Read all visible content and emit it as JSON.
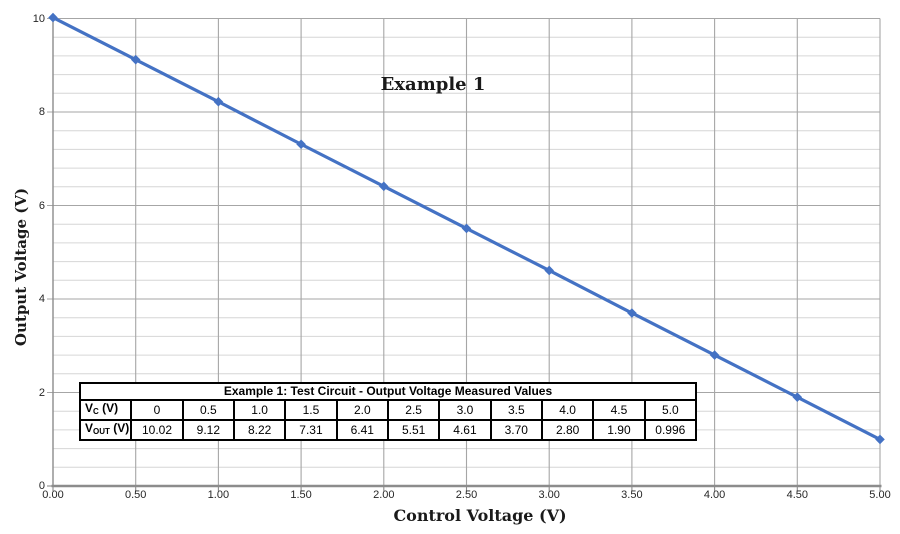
{
  "chart_data": {
    "type": "line",
    "title": "Example 1",
    "xlabel": "Control Voltage (V)",
    "ylabel": "Output Voltage (V)",
    "xlim": [
      0,
      5
    ],
    "ylim": [
      0,
      10
    ],
    "x_major_tick": 0.5,
    "y_major_tick": 2,
    "y_minor_tick": 0.4,
    "grid": "major-x, major-y, minor-y",
    "legend": "none",
    "x": [
      0,
      0.5,
      1.0,
      1.5,
      2.0,
      2.5,
      3.0,
      3.5,
      4.0,
      4.5,
      5.0
    ],
    "series": [
      {
        "name": "Output Voltage Measured Values",
        "values": [
          10.02,
          9.12,
          8.22,
          7.31,
          6.41,
          5.51,
          4.61,
          3.7,
          2.8,
          1.9,
          0.996
        ],
        "color": "#4472C4",
        "marker": "diamond"
      }
    ],
    "x_tick_labels": [
      "0.00",
      "0.50",
      "1.00",
      "1.50",
      "2.00",
      "2.50",
      "3.00",
      "3.50",
      "4.00",
      "4.50",
      "5.00"
    ],
    "y_tick_labels": [
      "0",
      "2",
      "4",
      "6",
      "8",
      "10"
    ]
  },
  "table": {
    "title": "Example 1: Test Circuit - Output Voltage Measured Values",
    "rows": [
      {
        "label_base": "V",
        "label_sub": "C",
        "label_unit": " (V)",
        "values": [
          "0",
          "0.5",
          "1.0",
          "1.5",
          "2.0",
          "2.5",
          "3.0",
          "3.5",
          "4.0",
          "4.5",
          "5.0"
        ]
      },
      {
        "label_base": "V",
        "label_sub": "OUT",
        "label_unit": " (V)",
        "values": [
          "10.02",
          "9.12",
          "8.22",
          "7.31",
          "6.41",
          "5.51",
          "4.61",
          "3.70",
          "2.80",
          "1.90",
          "0.996"
        ]
      }
    ]
  },
  "colors": {
    "series_line": "#4472C4",
    "grid_major": "#a6a6a6",
    "grid_minor": "#d6d6d6",
    "axis_line": "#8c8c8c",
    "text": "#262626",
    "table_border": "#000000",
    "background": "#ffffff"
  }
}
